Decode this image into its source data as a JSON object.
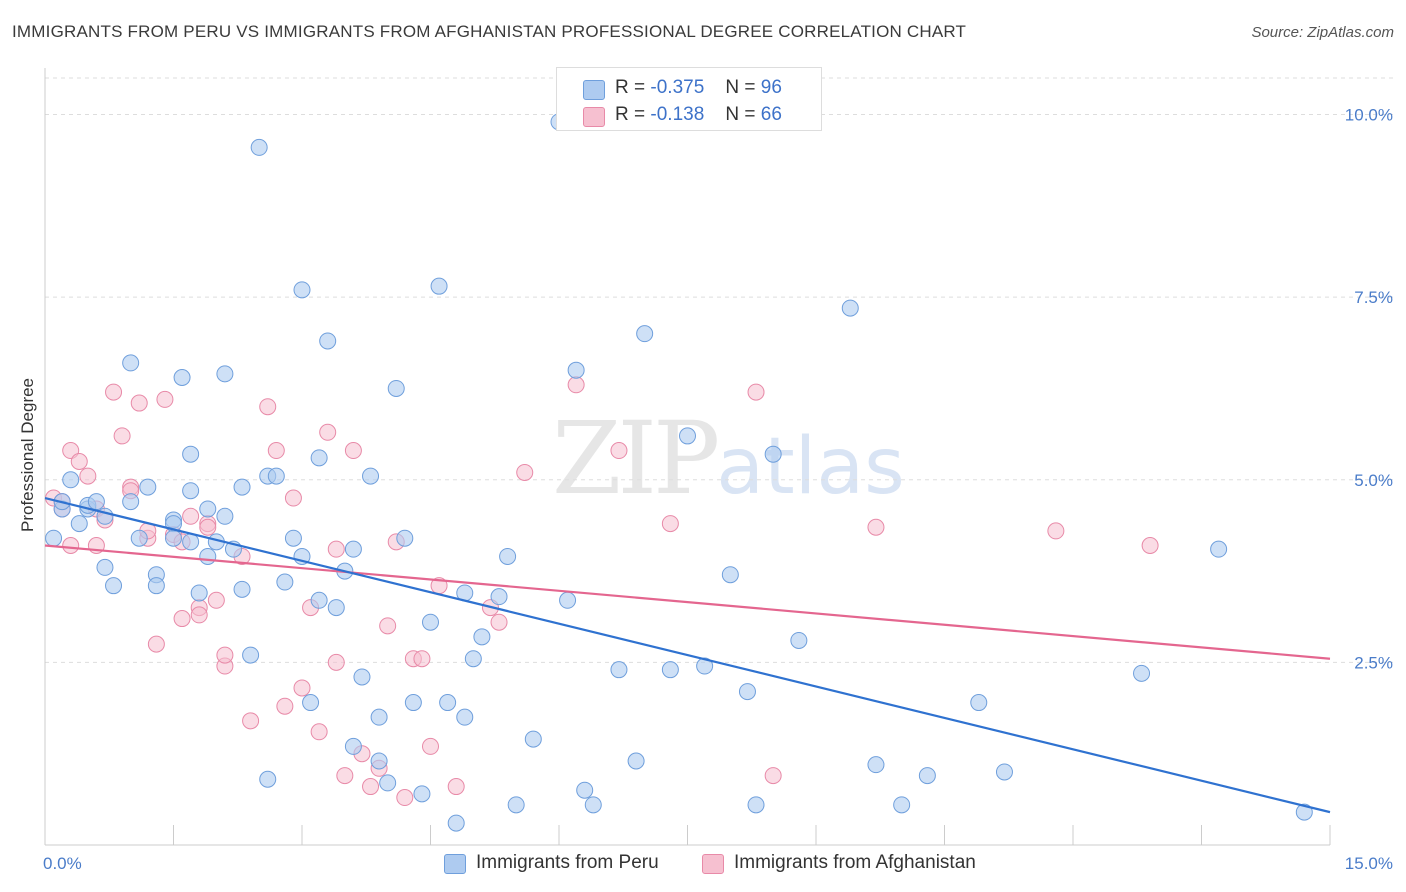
{
  "header": {
    "title": "IMMIGRANTS FROM PERU VS IMMIGRANTS FROM AFGHANISTAN PROFESSIONAL DEGREE CORRELATION CHART",
    "source": "Source: ZipAtlas.com"
  },
  "legend": {
    "rows": [
      {
        "r_label": "R =",
        "r_value": "-0.375",
        "n_label": "N =",
        "n_value": "96"
      },
      {
        "r_label": "R =",
        "r_value": "-0.138",
        "n_label": "N =",
        "n_value": "66"
      }
    ]
  },
  "watermark": {
    "zip": "ZIP",
    "atlas": "atlas"
  },
  "colors": {
    "peru_fill": "#aecbf0",
    "peru_stroke": "#6f9fdc",
    "peru_line": "#2f72d0",
    "afgh_fill": "#f6c0d0",
    "afgh_stroke": "#e88aa8",
    "afgh_line": "#e4668f",
    "grid": "#dddddd",
    "tick_text": "#4a7cc9"
  },
  "chart_data": {
    "type": "scatter",
    "title": "IMMIGRANTS FROM PERU VS IMMIGRANTS FROM AFGHANISTAN PROFESSIONAL DEGREE CORRELATION CHART",
    "xlabel": "",
    "ylabel": "Professional Degree",
    "xlim": [
      0,
      15
    ],
    "ylim": [
      0,
      10.5
    ],
    "x_tick_labels": [
      "0.0%",
      "15.0%"
    ],
    "y_ticks": [
      2.5,
      5.0,
      7.5,
      10.0
    ],
    "y_tick_labels": [
      "2.5%",
      "5.0%",
      "7.5%",
      "10.0%"
    ],
    "grid": true,
    "legend_position": "top-center",
    "series": [
      {
        "name": "Immigrants from Peru",
        "color": "#aecbf0",
        "trend": {
          "x": [
            0,
            15
          ],
          "y": [
            4.75,
            0.45
          ]
        },
        "points": [
          [
            0.1,
            4.2
          ],
          [
            0.2,
            4.6
          ],
          [
            0.2,
            4.7
          ],
          [
            0.3,
            5.0
          ],
          [
            0.4,
            4.4
          ],
          [
            0.5,
            4.6
          ],
          [
            0.5,
            4.65
          ],
          [
            0.6,
            4.7
          ],
          [
            0.7,
            3.8
          ],
          [
            0.7,
            4.5
          ],
          [
            0.8,
            3.55
          ],
          [
            1.0,
            4.7
          ],
          [
            1.0,
            6.6
          ],
          [
            1.1,
            4.2
          ],
          [
            1.2,
            4.9
          ],
          [
            1.3,
            3.7
          ],
          [
            1.3,
            3.55
          ],
          [
            1.5,
            4.45
          ],
          [
            1.5,
            4.4
          ],
          [
            1.5,
            4.2
          ],
          [
            1.6,
            6.4
          ],
          [
            1.7,
            4.15
          ],
          [
            1.7,
            4.85
          ],
          [
            1.7,
            5.35
          ],
          [
            1.8,
            3.45
          ],
          [
            1.9,
            4.6
          ],
          [
            1.9,
            3.95
          ],
          [
            2.0,
            4.15
          ],
          [
            2.1,
            4.5
          ],
          [
            2.1,
            6.45
          ],
          [
            2.2,
            4.05
          ],
          [
            2.3,
            3.5
          ],
          [
            2.3,
            4.9
          ],
          [
            2.4,
            2.6
          ],
          [
            2.5,
            9.55
          ],
          [
            2.6,
            5.05
          ],
          [
            2.7,
            5.05
          ],
          [
            2.6,
            0.9
          ],
          [
            2.8,
            3.6
          ],
          [
            2.9,
            4.2
          ],
          [
            3.0,
            7.6
          ],
          [
            3.0,
            3.95
          ],
          [
            3.1,
            1.95
          ],
          [
            3.2,
            5.3
          ],
          [
            3.2,
            3.35
          ],
          [
            3.3,
            6.9
          ],
          [
            3.4,
            3.25
          ],
          [
            3.5,
            3.75
          ],
          [
            3.6,
            4.05
          ],
          [
            3.6,
            1.35
          ],
          [
            3.7,
            2.3
          ],
          [
            3.8,
            5.05
          ],
          [
            3.9,
            1.75
          ],
          [
            3.9,
            1.15
          ],
          [
            4.0,
            0.85
          ],
          [
            4.1,
            6.25
          ],
          [
            4.2,
            4.2
          ],
          [
            4.3,
            1.95
          ],
          [
            4.4,
            0.7
          ],
          [
            4.5,
            3.05
          ],
          [
            4.6,
            7.65
          ],
          [
            4.7,
            1.95
          ],
          [
            4.8,
            0.3
          ],
          [
            4.9,
            1.75
          ],
          [
            4.9,
            3.45
          ],
          [
            5.0,
            2.55
          ],
          [
            5.1,
            2.85
          ],
          [
            5.3,
            3.4
          ],
          [
            5.4,
            3.95
          ],
          [
            5.5,
            0.55
          ],
          [
            5.7,
            1.45
          ],
          [
            6.0,
            9.9
          ],
          [
            6.1,
            3.35
          ],
          [
            6.2,
            6.5
          ],
          [
            6.3,
            0.75
          ],
          [
            6.4,
            0.55
          ],
          [
            6.7,
            2.4
          ],
          [
            6.9,
            1.15
          ],
          [
            7.0,
            7.0
          ],
          [
            7.3,
            2.4
          ],
          [
            7.5,
            5.6
          ],
          [
            7.7,
            2.45
          ],
          [
            8.0,
            3.7
          ],
          [
            8.2,
            2.1
          ],
          [
            8.3,
            0.55
          ],
          [
            8.5,
            5.35
          ],
          [
            8.8,
            2.8
          ],
          [
            9.4,
            7.35
          ],
          [
            9.7,
            1.1
          ],
          [
            10.0,
            0.55
          ],
          [
            10.3,
            0.95
          ],
          [
            10.9,
            1.95
          ],
          [
            11.2,
            1.0
          ],
          [
            12.8,
            2.35
          ],
          [
            13.7,
            4.05
          ],
          [
            14.7,
            0.45
          ]
        ]
      },
      {
        "name": "Immigrants from Afghanistan",
        "color": "#f6c0d0",
        "trend": {
          "x": [
            0,
            15
          ],
          "y": [
            4.1,
            2.55
          ]
        },
        "points": [
          [
            0.1,
            4.75
          ],
          [
            0.2,
            4.6
          ],
          [
            0.2,
            4.7
          ],
          [
            0.3,
            4.1
          ],
          [
            0.3,
            5.4
          ],
          [
            0.4,
            5.25
          ],
          [
            0.5,
            5.05
          ],
          [
            0.6,
            4.1
          ],
          [
            0.6,
            4.6
          ],
          [
            0.7,
            4.45
          ],
          [
            0.8,
            6.2
          ],
          [
            0.9,
            5.6
          ],
          [
            1.0,
            4.9
          ],
          [
            1.0,
            4.85
          ],
          [
            1.1,
            6.05
          ],
          [
            1.2,
            4.2
          ],
          [
            1.2,
            4.3
          ],
          [
            1.3,
            2.75
          ],
          [
            1.4,
            6.1
          ],
          [
            1.5,
            4.25
          ],
          [
            1.6,
            4.15
          ],
          [
            1.6,
            3.1
          ],
          [
            1.7,
            4.5
          ],
          [
            1.8,
            3.25
          ],
          [
            1.8,
            3.15
          ],
          [
            1.9,
            4.4
          ],
          [
            1.9,
            4.35
          ],
          [
            2.0,
            3.35
          ],
          [
            2.1,
            2.45
          ],
          [
            2.1,
            2.6
          ],
          [
            2.3,
            3.95
          ],
          [
            2.4,
            1.7
          ],
          [
            2.6,
            6.0
          ],
          [
            2.7,
            5.4
          ],
          [
            2.8,
            1.9
          ],
          [
            2.9,
            4.75
          ],
          [
            3.0,
            2.15
          ],
          [
            3.1,
            3.25
          ],
          [
            3.2,
            1.55
          ],
          [
            3.3,
            5.65
          ],
          [
            3.4,
            4.05
          ],
          [
            3.4,
            2.5
          ],
          [
            3.5,
            0.95
          ],
          [
            3.6,
            5.4
          ],
          [
            3.7,
            1.25
          ],
          [
            3.8,
            0.8
          ],
          [
            3.9,
            1.05
          ],
          [
            4.0,
            3.0
          ],
          [
            4.1,
            4.15
          ],
          [
            4.2,
            0.65
          ],
          [
            4.3,
            2.55
          ],
          [
            4.4,
            2.55
          ],
          [
            4.5,
            1.35
          ],
          [
            4.6,
            3.55
          ],
          [
            4.8,
            0.8
          ],
          [
            5.2,
            3.25
          ],
          [
            5.3,
            3.05
          ],
          [
            5.6,
            5.1
          ],
          [
            6.2,
            6.3
          ],
          [
            6.7,
            5.4
          ],
          [
            7.3,
            4.4
          ],
          [
            8.3,
            6.2
          ],
          [
            8.5,
            0.95
          ],
          [
            9.7,
            4.35
          ],
          [
            11.8,
            4.3
          ],
          [
            12.9,
            4.1
          ]
        ]
      }
    ]
  },
  "bottom_legend": {
    "peru": "Immigrants from Peru",
    "afghanistan": "Immigrants from Afghanistan"
  }
}
